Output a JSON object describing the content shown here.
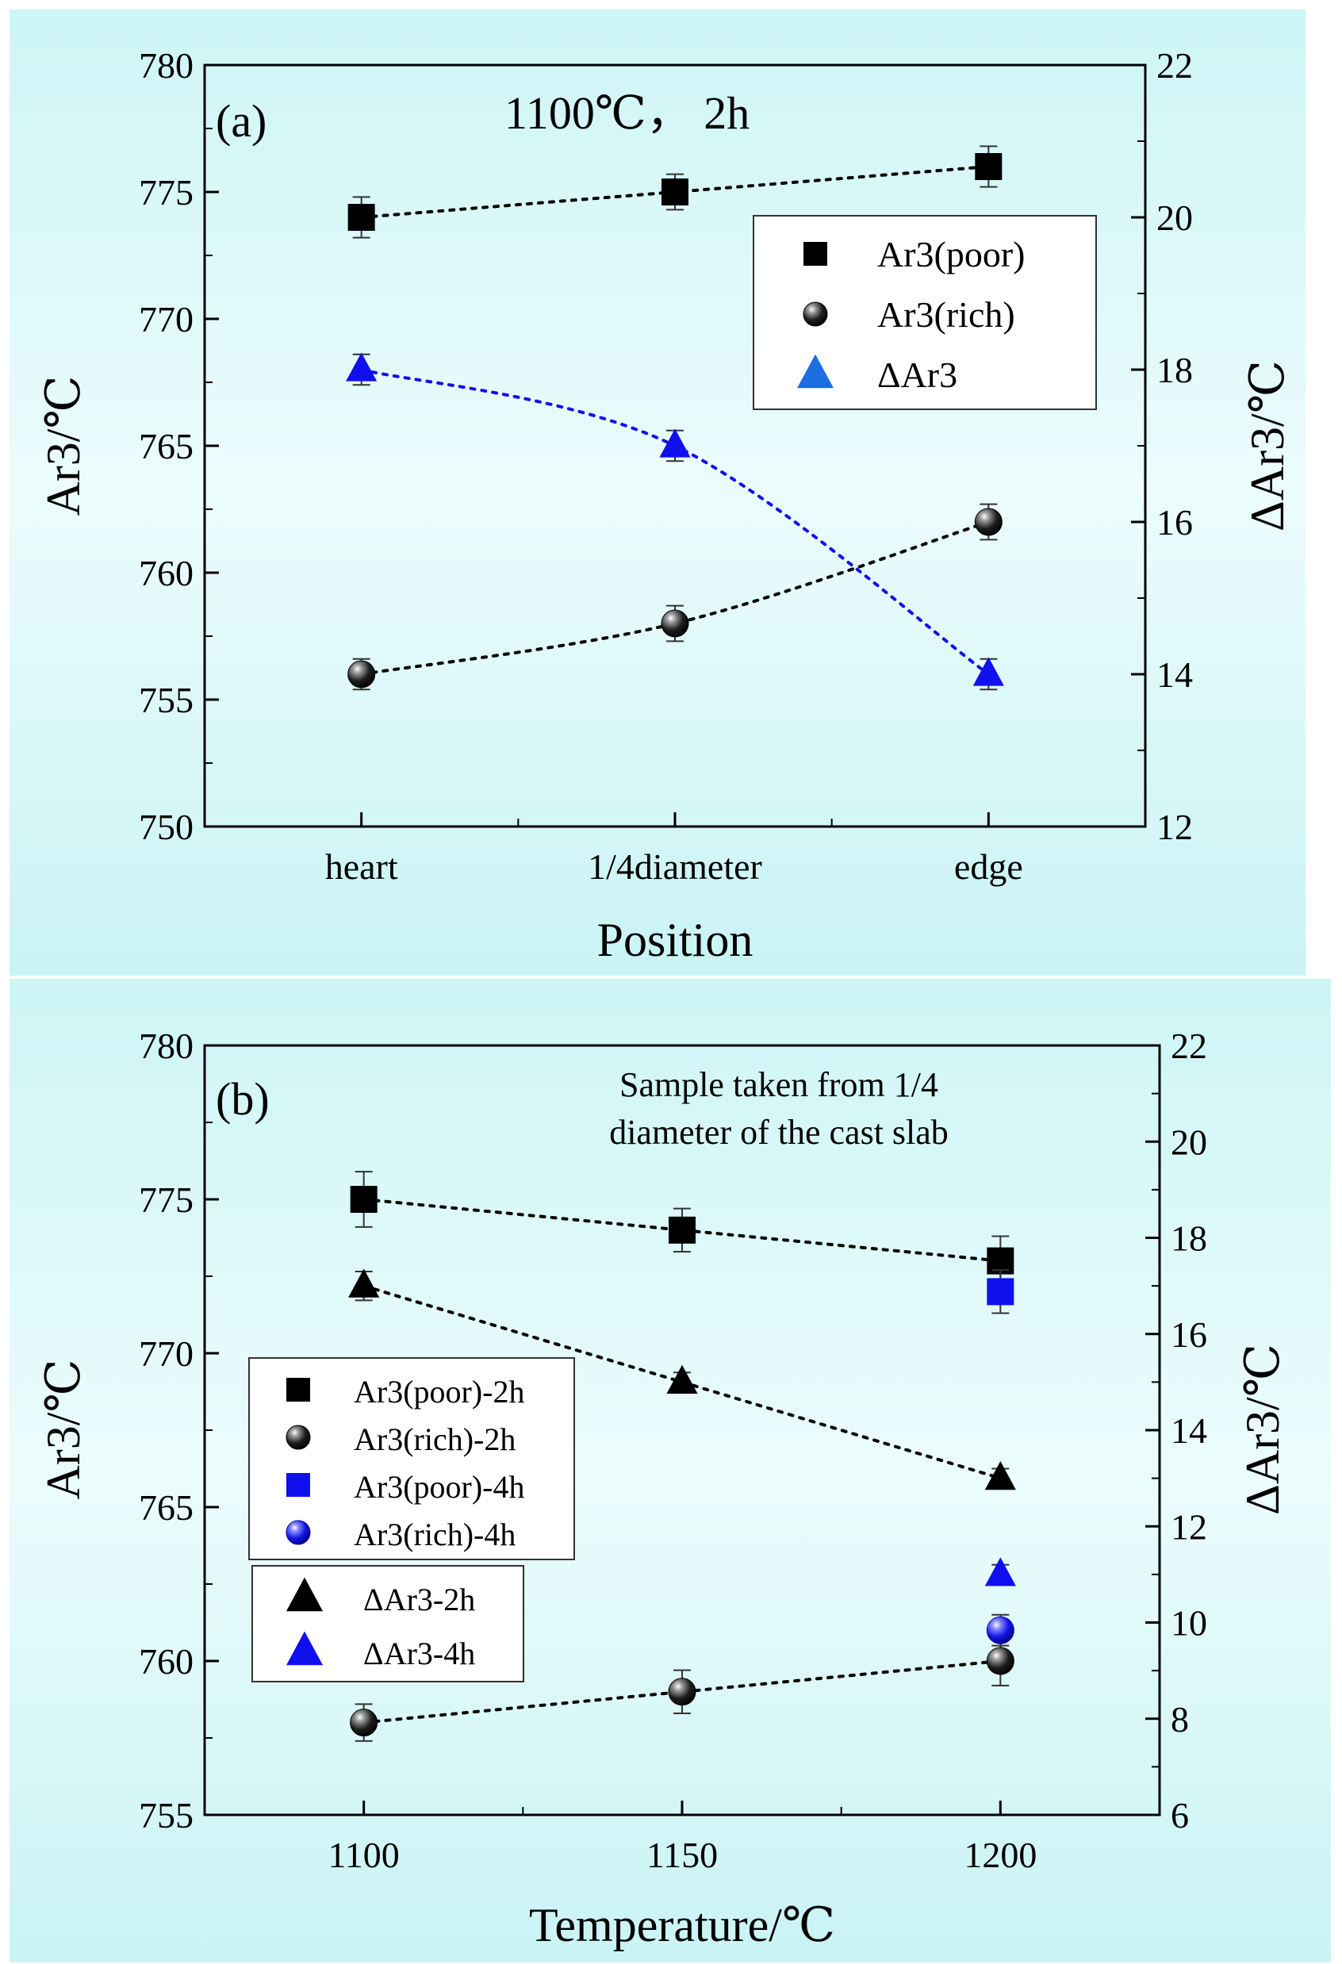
{
  "chart_data": [
    {
      "type": "scatter",
      "panel": "(a)",
      "annotation": "1100℃， 2h",
      "xlabel": "Position",
      "ylabel": "Ar3/℃",
      "y2label": "ΔAr3/℃",
      "categories": [
        "heart",
        "1/4diameter",
        "edge"
      ],
      "ylim": [
        750,
        780
      ],
      "yticks": [
        "750",
        "755",
        "760",
        "765",
        "770",
        "775",
        "780"
      ],
      "y2lim": [
        12,
        22
      ],
      "y2ticks": [
        "12",
        "14",
        "16",
        "18",
        "20",
        "22"
      ],
      "series": [
        {
          "name": "Ar3(poor)",
          "axis": "left",
          "marker": "square",
          "color": "#000000",
          "values": [
            774,
            775,
            776
          ],
          "errors": [
            0.8,
            0.7,
            0.8
          ]
        },
        {
          "name": "Ar3(rich)",
          "axis": "left",
          "marker": "sphere",
          "color": "#000000",
          "values": [
            756,
            758,
            762
          ],
          "errors": [
            0.6,
            0.7,
            0.7
          ]
        },
        {
          "name": "ΔAr3",
          "axis": "right",
          "marker": "triangle",
          "color": "#1010ee",
          "values": [
            18,
            17,
            14
          ],
          "errors": [
            0.2,
            0.2,
            0.2
          ]
        }
      ],
      "legend": {
        "position": "top-right",
        "entries": [
          {
            "label": "Ar3(poor)",
            "marker": "square",
            "color": "#000000"
          },
          {
            "label": "Ar3(rich)",
            "marker": "sphere",
            "color": "#000000"
          },
          {
            "label": "ΔAr3",
            "marker": "triangle",
            "color": "#1a6ee0"
          }
        ]
      }
    },
    {
      "type": "scatter",
      "panel": "(b)",
      "annotation": [
        "Sample taken from 1/4",
        "diameter of the cast slab"
      ],
      "xlabel": "Temperature/℃",
      "ylabel": "Ar3/℃",
      "y2label": "ΔAr3/℃",
      "x": [
        1100,
        1150,
        1200
      ],
      "xlim": [
        1075,
        1225
      ],
      "xticks": [
        "1100",
        "1150",
        "1200"
      ],
      "ylim": [
        755,
        780
      ],
      "yticks": [
        "755",
        "760",
        "765",
        "770",
        "775",
        "780"
      ],
      "y2lim": [
        6,
        22
      ],
      "y2ticks": [
        "6",
        "8",
        "10",
        "12",
        "14",
        "16",
        "18",
        "20",
        "22"
      ],
      "series": [
        {
          "name": "Ar3(poor)-2h",
          "axis": "left",
          "marker": "square",
          "color": "#000000",
          "x": [
            1100,
            1150,
            1200
          ],
          "values": [
            775,
            774,
            773
          ],
          "errors": [
            0.9,
            0.7,
            0.8
          ]
        },
        {
          "name": "Ar3(rich)-2h",
          "axis": "left",
          "marker": "sphere",
          "color": "#000000",
          "x": [
            1100,
            1150,
            1200
          ],
          "values": [
            758,
            759,
            760
          ],
          "errors": [
            0.6,
            0.7,
            0.8
          ]
        },
        {
          "name": "Ar3(poor)-4h",
          "axis": "left",
          "marker": "square",
          "color": "#1010ee",
          "x": [
            1200
          ],
          "values": [
            772
          ],
          "errors": [
            0.7
          ]
        },
        {
          "name": "Ar3(rich)-4h",
          "axis": "left",
          "marker": "sphere",
          "color": "#1010ee",
          "x": [
            1200
          ],
          "values": [
            761
          ],
          "errors": [
            0.5
          ]
        },
        {
          "name": "ΔAr3-2h",
          "axis": "right",
          "marker": "triangle",
          "color": "#000000",
          "x": [
            1100,
            1150,
            1200
          ],
          "values": [
            17,
            15,
            13
          ],
          "errors": [
            0.3,
            0.2,
            0.2
          ]
        },
        {
          "name": "ΔAr3-4h",
          "axis": "right",
          "marker": "triangle",
          "color": "#1010ee",
          "x": [
            1200
          ],
          "values": [
            11
          ],
          "errors": [
            0.2
          ]
        }
      ],
      "legend": {
        "position": "center-left",
        "entries": [
          {
            "label": "Ar3(poor)-2h",
            "marker": "square",
            "color": "#000000"
          },
          {
            "label": "Ar3(rich)-2h",
            "marker": "sphere",
            "color": "#000000"
          },
          {
            "label": "Ar3(poor)-4h",
            "marker": "square",
            "color": "#1010ee"
          },
          {
            "label": "Ar3(rich)-4h",
            "marker": "sphere",
            "color": "#1010ee"
          }
        ],
        "entries2": [
          {
            "label": "ΔAr3-2h",
            "marker": "triangle",
            "color": "#000000"
          },
          {
            "label": "ΔAr3-4h",
            "marker": "triangle",
            "color": "#1010ee"
          }
        ]
      }
    }
  ]
}
